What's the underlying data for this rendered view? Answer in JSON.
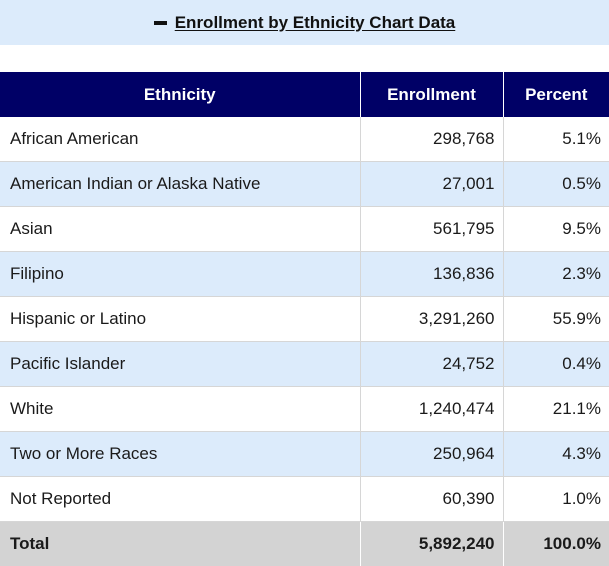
{
  "header": {
    "title": "Enrollment by Ethnicity Chart Data",
    "toggle_icon": "minus-icon"
  },
  "table": {
    "columns": [
      "Ethnicity",
      "Enrollment",
      "Percent"
    ],
    "rows": [
      {
        "ethnicity": "African American",
        "enrollment": "298,768",
        "percent": "5.1%"
      },
      {
        "ethnicity": "American Indian or Alaska Native",
        "enrollment": "27,001",
        "percent": "0.5%"
      },
      {
        "ethnicity": "Asian",
        "enrollment": "561,795",
        "percent": "9.5%"
      },
      {
        "ethnicity": "Filipino",
        "enrollment": "136,836",
        "percent": "2.3%"
      },
      {
        "ethnicity": "Hispanic or Latino",
        "enrollment": "3,291,260",
        "percent": "55.9%"
      },
      {
        "ethnicity": "Pacific Islander",
        "enrollment": "24,752",
        "percent": "0.4%"
      },
      {
        "ethnicity": "White",
        "enrollment": "1,240,474",
        "percent": "21.1%"
      },
      {
        "ethnicity": "Two or More Races",
        "enrollment": "250,964",
        "percent": "4.3%"
      },
      {
        "ethnicity": "Not Reported",
        "enrollment": "60,390",
        "percent": "1.0%"
      }
    ],
    "total": {
      "label": "Total",
      "enrollment": "5,892,240",
      "percent": "100.0%"
    }
  },
  "colors": {
    "header_bar": "#dcebfb",
    "table_header": "#000066",
    "row_alt": "#dcebfb",
    "total_row": "#d3d3d3"
  }
}
